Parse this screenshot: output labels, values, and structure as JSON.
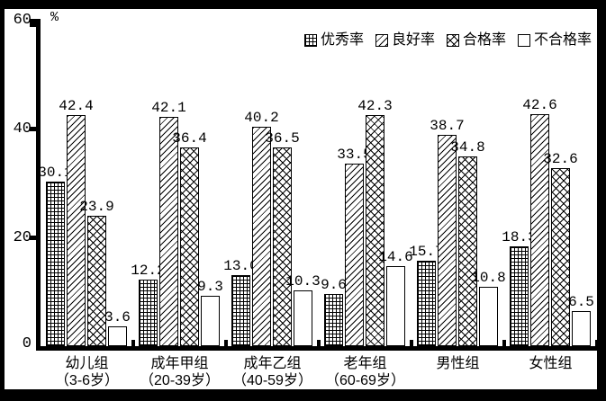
{
  "colors": {
    "frame_border": "#000000",
    "background": "#ffffff",
    "ink": "#000000"
  },
  "y_axis": {
    "unit_label": "%",
    "tick_labels": [
      "60",
      "40",
      "20",
      "0"
    ],
    "max": 60
  },
  "legend": [
    {
      "name": "excellent-rate",
      "label": "优秀率",
      "pattern": "grid"
    },
    {
      "name": "good-rate",
      "label": "良好率",
      "pattern": "diag"
    },
    {
      "name": "pass-rate",
      "label": "合格率",
      "pattern": "cross"
    },
    {
      "name": "fail-rate",
      "label": "不合格率",
      "pattern": "plain"
    }
  ],
  "chart_data": {
    "type": "bar",
    "title": "",
    "xlabel": "",
    "ylabel": "%",
    "ylim": [
      0,
      60
    ],
    "grid": false,
    "legend_position": "top-right",
    "categories": [
      {
        "label": "幼儿组",
        "sub": "（3-6岁）"
      },
      {
        "label": "成年甲组",
        "sub": "（20-39岁）"
      },
      {
        "label": "成年乙组",
        "sub": "（40-59岁）"
      },
      {
        "label": "老年组",
        "sub": "（60-69岁）"
      },
      {
        "label": "男性组",
        "sub": ""
      },
      {
        "label": "女性组",
        "sub": ""
      }
    ],
    "series": [
      {
        "name": "优秀率",
        "pattern": "grid",
        "values": [
          30.1,
          12.2,
          13.0,
          9.6,
          15.7,
          18.3
        ]
      },
      {
        "name": "良好率",
        "pattern": "diag",
        "values": [
          42.4,
          42.1,
          40.2,
          33.5,
          38.7,
          42.6
        ]
      },
      {
        "name": "合格率",
        "pattern": "cross",
        "values": [
          23.9,
          36.4,
          36.5,
          42.3,
          34.8,
          32.6
        ]
      },
      {
        "name": "不合格率",
        "pattern": "plain",
        "values": [
          3.6,
          9.3,
          10.3,
          14.6,
          10.8,
          6.5
        ]
      }
    ]
  }
}
